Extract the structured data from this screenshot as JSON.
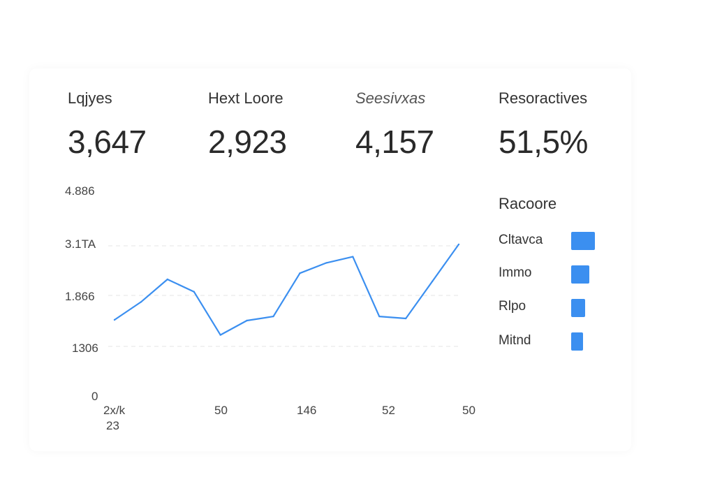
{
  "stats": [
    {
      "label": "Lqjyes",
      "value": "3,647"
    },
    {
      "label": "Hext Loore",
      "value": "2,923"
    },
    {
      "label": "Seesivxas",
      "value": "4,157"
    },
    {
      "label": "Resoractives",
      "value": "51,5%"
    }
  ],
  "chart_data": {
    "type": "line",
    "title": "",
    "xlabel": "",
    "ylabel": "",
    "y_tick_labels": [
      "4.886",
      "3.1TA",
      "1.866",
      "1306",
      "0"
    ],
    "x_tick_labels": [
      "2x/k",
      "50",
      "146",
      "52",
      "50"
    ],
    "x_tick_sublabel": "23",
    "ylim": [
      0,
      4886
    ],
    "series": [
      {
        "name": "Racoore",
        "color": "#3b8ff0",
        "values": [
          1866,
          2300,
          2850,
          2550,
          1500,
          1850,
          1950,
          3000,
          3250,
          3400,
          1950,
          1900,
          2800,
          3700
        ]
      }
    ]
  },
  "legend": {
    "title": "Racoore",
    "items": [
      {
        "label": "Cltavca",
        "color": "#3b8ff0"
      },
      {
        "label": "Immo",
        "color": "#3b8ff0"
      },
      {
        "label": "Rlpo",
        "color": "#3b8ff0"
      },
      {
        "label": "Mitnd",
        "color": "#3b8ff0"
      }
    ]
  }
}
